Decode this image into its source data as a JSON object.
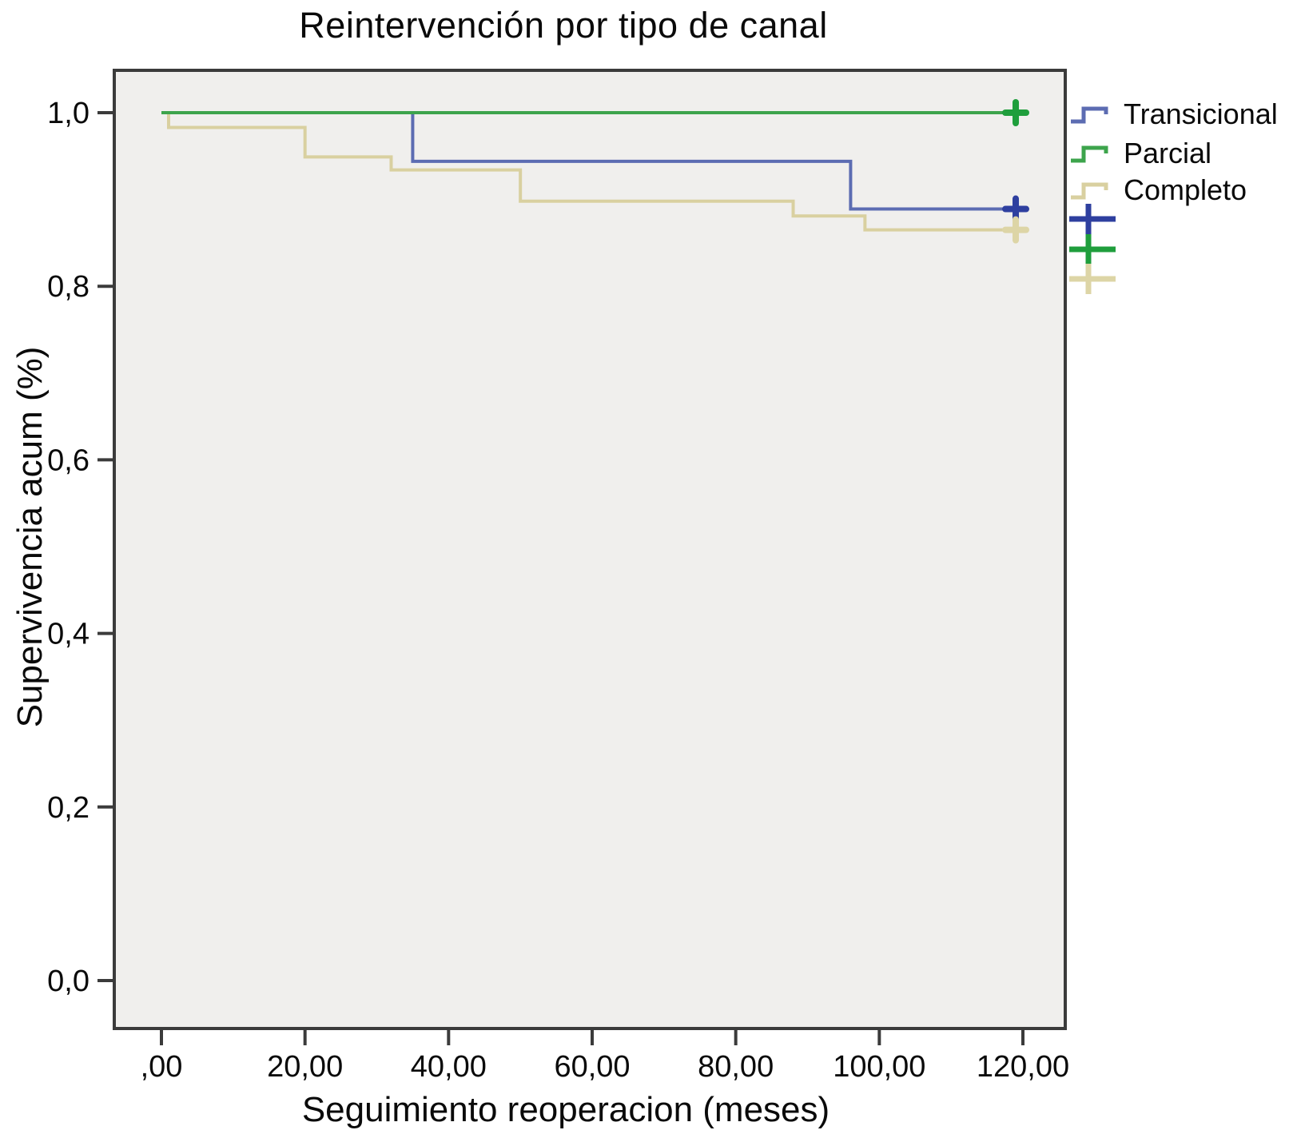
{
  "chart_data": {
    "type": "line",
    "chart_kind": "kaplan_meier_step_survival",
    "title": "Reintervención por tipo de canal",
    "xlabel": "Seguimiento reoperacion (meses)",
    "ylabel": "Supervivencia acum (%)",
    "xlim": [
      0,
      120
    ],
    "ylim": [
      0.0,
      1.0
    ],
    "grid": false,
    "legend_position": "right-top",
    "x_ticks": [
      0,
      20,
      40,
      60,
      80,
      100,
      120
    ],
    "x_tick_labels": [
      ",00",
      "20,00",
      "40,00",
      "60,00",
      "80,00",
      "100,00",
      "120,00"
    ],
    "y_ticks": [
      0,
      0.2,
      0.4,
      0.6,
      0.8,
      1.0
    ],
    "y_tick_labels": [
      "0,0",
      "0,2",
      "0,4",
      "0,6",
      "0,8",
      "1,0"
    ],
    "colors": {
      "plot_bg": "#f0efed",
      "frame": "#3b3b3b",
      "text": "#0a0a0a"
    },
    "series": [
      {
        "name": "Transicional",
        "color": "#5c6cb2",
        "censor_color": "#2e3f9f",
        "steps": [
          [
            0,
            1.0
          ],
          [
            35,
            0.944
          ],
          [
            96,
            0.889
          ]
        ],
        "censored_at": [
          [
            119,
            0.889
          ]
        ]
      },
      {
        "name": "Parcial",
        "color": "#3da44c",
        "censor_color": "#1f9e3c",
        "steps": [
          [
            0,
            1.0
          ]
        ],
        "censored_at": [
          [
            119,
            1.0
          ]
        ]
      },
      {
        "name": "Completo",
        "color": "#d9d0a0",
        "censor_color": "#ddd5a6",
        "steps": [
          [
            0,
            1.0
          ],
          [
            1,
            0.983
          ],
          [
            20,
            0.949
          ],
          [
            32,
            0.934
          ],
          [
            50,
            0.898
          ],
          [
            88,
            0.881
          ],
          [
            98,
            0.865
          ]
        ],
        "censored_at": [
          [
            119,
            0.865
          ]
        ]
      }
    ]
  }
}
